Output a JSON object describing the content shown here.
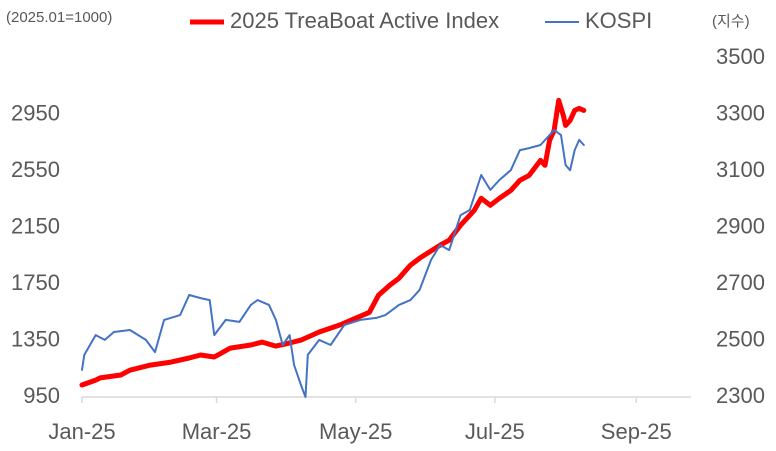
{
  "chart_data": {
    "type": "line",
    "note_left": "(2025.01=1000)",
    "note_right": "(지수)",
    "xlim": [
      0,
      267
    ],
    "xticks": [
      {
        "value": 0,
        "label": "Jan-25"
      },
      {
        "value": 59,
        "label": "Mar-25"
      },
      {
        "value": 120,
        "label": "May-25"
      },
      {
        "value": 181,
        "label": "Jul-25"
      },
      {
        "value": 243,
        "label": "Sep-25"
      }
    ],
    "ylim": [
      950,
      3350
    ],
    "yticks": [
      950,
      1350,
      1750,
      2150,
      2550,
      2950
    ],
    "y2lim": [
      2300,
      3500
    ],
    "y2ticks": [
      2300,
      2500,
      2700,
      2900,
      3100,
      3300,
      3500
    ],
    "series": [
      {
        "name": "2025 TreaBoat Active Index",
        "color": "#ff0000",
        "width": 5,
        "x": [
          0,
          6,
          8,
          17,
          21,
          30,
          39,
          47,
          52,
          58,
          65,
          74,
          79,
          85,
          91,
          96,
          104,
          113,
          120,
          126,
          130,
          135,
          139,
          144,
          148,
          157,
          161,
          166,
          172,
          175,
          179,
          183,
          188,
          192,
          196,
          201,
          203,
          205,
          207,
          209,
          211,
          212,
          214,
          216,
          218,
          220
        ],
        "values": [
          1035,
          1070,
          1085,
          1106,
          1140,
          1176,
          1197,
          1226,
          1247,
          1233,
          1296,
          1318,
          1339,
          1310,
          1332,
          1353,
          1410,
          1460,
          1508,
          1550,
          1671,
          1742,
          1791,
          1883,
          1933,
          2025,
          2060,
          2166,
          2272,
          2357,
          2307,
          2357,
          2413,
          2484,
          2519,
          2625,
          2590,
          2767,
          2837,
          3050,
          2944,
          2873,
          2908,
          2979,
          2993,
          2979
        ]
      },
      {
        "name": "KOSPI",
        "color": "#4472c4",
        "width": 2,
        "axis": "y2",
        "x": [
          0,
          1,
          6,
          10,
          14,
          21,
          28,
          32,
          36,
          43,
          47,
          52,
          56,
          58,
          63,
          69,
          74,
          77,
          82,
          85,
          88,
          91,
          93,
          96,
          98,
          99,
          104,
          109,
          115,
          122,
          129,
          133,
          139,
          144,
          148,
          153,
          157,
          161,
          166,
          170,
          175,
          179,
          183,
          188,
          192,
          196,
          201,
          205,
          207,
          210,
          212,
          214,
          216,
          218,
          220
        ],
        "values": [
          2396,
          2449,
          2519,
          2502,
          2530,
          2537,
          2502,
          2459,
          2573,
          2590,
          2661,
          2650,
          2643,
          2519,
          2573,
          2566,
          2626,
          2643,
          2626,
          2573,
          2484,
          2519,
          2413,
          2342,
          2300,
          2449,
          2502,
          2484,
          2555,
          2573,
          2580,
          2590,
          2626,
          2643,
          2679,
          2785,
          2838,
          2820,
          2944,
          2962,
          3086,
          3033,
          3068,
          3103,
          3174,
          3181,
          3192,
          3227,
          3245,
          3227,
          3121,
          3103,
          3174,
          3210,
          3192
        ]
      }
    ]
  }
}
